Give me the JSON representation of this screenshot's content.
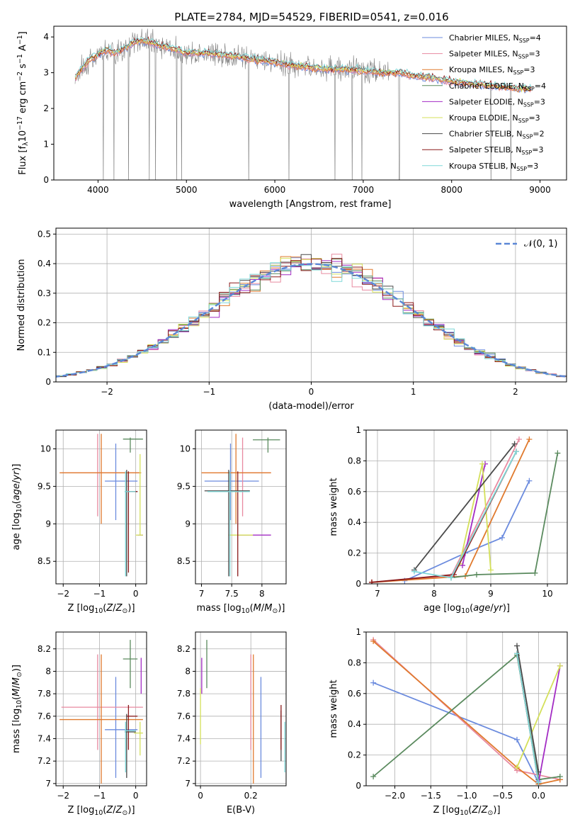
{
  "figure_title": "PLATE=2784, MJD=54529, FIBERID=0541, z=0.016",
  "models": [
    {
      "name": "Chabrier MILES, N<sub>SSP</sub>=4",
      "color": "#6b8bde"
    },
    {
      "name": "Salpeter MILES, N<sub>SSP</sub>=3",
      "color": "#e88aa0"
    },
    {
      "name": "Kroupa MILES, N<sub>SSP</sub>=3",
      "color": "#e07a2e"
    },
    {
      "name": "Chabrier ELODIE, N<sub>SSP</sub>=4",
      "color": "#5a8a5e"
    },
    {
      "name": "Salpeter ELODIE, N<sub>SSP</sub>=3",
      "color": "#a32cc4"
    },
    {
      "name": "Kroupa ELODIE, N<sub>SSP</sub>=3",
      "color": "#d4e05a"
    },
    {
      "name": "Chabrier STELIB, N<sub>SSP</sub>=2",
      "color": "#4a4a4a"
    },
    {
      "name": "Salpeter STELIB, N<sub>SSP</sub>=3",
      "color": "#8b1a1a"
    },
    {
      "name": "Kroupa STELIB, N<sub>SSP</sub>=3",
      "color": "#7fd8d8"
    }
  ],
  "chart_data": [
    {
      "id": "spectrum",
      "type": "line",
      "title": "PLATE=2784, MJD=54529, FIBERID=0541, z=0.016",
      "xlabel": "wavelength [Angstrom, rest frame]",
      "ylabel": "Flux [f<sub>λ</sub>10<sup>−17</sup> erg cm<sup>−2</sup> s<sup>−1</sup> A<sup>−1</sup>]",
      "xlim": [
        3500,
        9300
      ],
      "ylim": [
        0,
        4.3
      ],
      "xticks": [
        4000,
        5000,
        6000,
        7000,
        8000,
        9000
      ],
      "yticks": [
        0,
        1,
        2,
        3,
        4
      ],
      "grid": false,
      "legend": "upper-right",
      "data_color": "#808080",
      "continuum": {
        "x": [
          3740,
          3800,
          3900,
          4000,
          4100,
          4200,
          4300,
          4400,
          4500,
          4600,
          4700,
          4800,
          4900,
          5000,
          5200,
          5400,
          5600,
          5800,
          6000,
          6200,
          6400,
          6600,
          6800,
          7000,
          7200,
          7400,
          7600,
          7800,
          8000,
          8200,
          8400,
          8600,
          8800
        ],
        "y": [
          2.85,
          3.05,
          3.35,
          3.5,
          3.65,
          3.55,
          3.7,
          3.85,
          3.9,
          3.85,
          3.75,
          3.7,
          3.65,
          3.55,
          3.55,
          3.5,
          3.45,
          3.35,
          3.3,
          3.2,
          3.15,
          3.1,
          3.1,
          3.05,
          3.0,
          3.0,
          2.9,
          2.85,
          2.75,
          2.7,
          2.65,
          2.6,
          2.55
        ]
      }
    },
    {
      "id": "residuals",
      "type": "histogram",
      "xlabel": "(data-model)/error",
      "ylabel": "Normed distribution",
      "xlim": [
        -2.5,
        2.5
      ],
      "ylim": [
        0,
        0.52
      ],
      "xticks": [
        -2,
        -1,
        0,
        1,
        2
      ],
      "yticks": [
        0.0,
        0.1,
        0.2,
        0.3,
        0.4,
        0.5
      ],
      "grid": true,
      "legend": "upper-right",
      "reference_curve": {
        "name": "𝒩(0, 1)",
        "mean": 0,
        "sigma": 1,
        "color": "#5b87d6"
      },
      "bin_width": 0.1
    },
    {
      "id": "age-vs-Z",
      "type": "errorbar",
      "xlabel": "Z [log<sub>10</sub>(<i>Z</i>/<i>Z</i><sub>⊙</sub>)]",
      "ylabel": "age  [log<sub>10</sub>(<i>age</i>/<i>yr</i>)]",
      "xlim": [
        -2.2,
        0.3
      ],
      "ylim": [
        8.2,
        10.25
      ],
      "xticks": [
        -2,
        -1,
        0
      ],
      "yticks": [
        8.5,
        9.0,
        9.5,
        10.0
      ],
      "grid": true,
      "points": [
        {
          "m": 0,
          "x": -0.55,
          "y": 9.57,
          "xe": [
            -0.85,
            0.05
          ],
          "ye": [
            9.05,
            10.07
          ]
        },
        {
          "m": 1,
          "x": -1.05,
          "y": 9.68,
          "xe": [
            -2.05,
            0.1
          ],
          "ye": [
            9.1,
            10.2
          ]
        },
        {
          "m": 2,
          "x": -0.95,
          "y": 9.68,
          "xe": [
            -2.1,
            0.15
          ],
          "ye": [
            9.0,
            10.2
          ]
        },
        {
          "m": 3,
          "x": -0.15,
          "y": 10.13,
          "xe": [
            -0.35,
            0.2
          ],
          "ye": [
            9.95,
            10.15
          ]
        },
        {
          "m": 4,
          "x": 0.2,
          "y": 8.85,
          "xe": [
            0.05,
            0.2
          ],
          "ye": [
            8.85,
            8.85
          ]
        },
        {
          "m": 5,
          "x": 0.12,
          "y": 8.85,
          "xe": [
            0.0,
            0.2
          ],
          "ye": [
            8.85,
            9.93
          ]
        },
        {
          "m": 6,
          "x": -0.25,
          "y": 9.43,
          "xe": [
            -0.3,
            0.05
          ],
          "ye": [
            8.3,
            9.72
          ]
        },
        {
          "m": 7,
          "x": -0.2,
          "y": 9.43,
          "xe": [
            -0.25,
            0.05
          ],
          "ye": [
            8.35,
            9.7
          ]
        },
        {
          "m": 8,
          "x": -0.28,
          "y": 9.43,
          "xe": [
            -0.3,
            0.0
          ],
          "ye": [
            8.3,
            9.7
          ]
        }
      ]
    },
    {
      "id": "age-vs-mass",
      "type": "errorbar",
      "xlabel": "mass [log<sub>10</sub>(<i>M</i>/<i>M</i><sub>⊙</sub>)]",
      "ylabel": "",
      "xlim": [
        6.9,
        8.4
      ],
      "ylim": [
        8.2,
        10.25
      ],
      "xticks": [
        7.0,
        7.5,
        8.0
      ],
      "yticks": [
        8.5,
        9.0,
        9.5,
        10.0
      ],
      "grid": true,
      "points": [
        {
          "m": 0,
          "x": 7.48,
          "y": 9.57,
          "xe": [
            7.05,
            7.95
          ],
          "ye": [
            9.05,
            10.07
          ]
        },
        {
          "m": 1,
          "x": 7.68,
          "y": 9.68,
          "xe": [
            7.3,
            8.15
          ],
          "ye": [
            9.1,
            10.15
          ]
        },
        {
          "m": 2,
          "x": 7.57,
          "y": 9.68,
          "xe": [
            7.0,
            8.15
          ],
          "ye": [
            9.0,
            10.2
          ]
        },
        {
          "m": 3,
          "x": 8.1,
          "y": 10.12,
          "xe": [
            7.85,
            8.3
          ],
          "ye": [
            9.95,
            10.15
          ]
        },
        {
          "m": 4,
          "x": 7.85,
          "y": 8.85,
          "xe": [
            7.6,
            8.15
          ],
          "ye": [
            8.85,
            8.85
          ]
        },
        {
          "m": 5,
          "x": 7.65,
          "y": 8.85,
          "xe": [
            7.45,
            7.85
          ],
          "ye": [
            8.85,
            8.85
          ]
        },
        {
          "m": 6,
          "x": 7.45,
          "y": 9.44,
          "xe": [
            7.05,
            7.8
          ],
          "ye": [
            8.3,
            9.72
          ]
        },
        {
          "m": 7,
          "x": 7.6,
          "y": 9.43,
          "xe": [
            7.3,
            7.75
          ],
          "ye": [
            8.3,
            9.7
          ]
        },
        {
          "m": 8,
          "x": 7.47,
          "y": 9.43,
          "xe": [
            7.1,
            7.8
          ],
          "ye": [
            8.3,
            9.7
          ]
        }
      ]
    },
    {
      "id": "weight-vs-age",
      "type": "line",
      "xlabel": "age  [log<sub>10</sub>(<i>age</i>/<i>yr</i>)]",
      "ylabel": "mass weight",
      "xlim": [
        6.8,
        10.35
      ],
      "ylim": [
        0,
        1.0
      ],
      "xticks": [
        7,
        8,
        9,
        10
      ],
      "yticks": [
        0.0,
        0.2,
        0.4,
        0.6,
        0.8,
        1.0
      ],
      "grid": true,
      "series": [
        {
          "m": 0,
          "x": [
            7.48,
            8.55,
            9.2,
            9.68
          ],
          "y": [
            0.02,
            0.2,
            0.3,
            0.67
          ]
        },
        {
          "m": 1,
          "x": [
            6.9,
            8.3,
            9.5
          ],
          "y": [
            0.01,
            0.05,
            0.94
          ]
        },
        {
          "m": 2,
          "x": [
            6.9,
            8.55,
            9.68
          ],
          "y": [
            0.01,
            0.05,
            0.94
          ]
        },
        {
          "m": 3,
          "x": [
            8.3,
            8.75,
            9.78,
            10.18
          ],
          "y": [
            0.04,
            0.06,
            0.07,
            0.85
          ]
        },
        {
          "m": 4,
          "x": [
            8.5,
            8.9
          ],
          "y": [
            0.12,
            0.78
          ]
        },
        {
          "m": 5,
          "x": [
            8.45,
            8.85,
            9.0
          ],
          "y": [
            0.13,
            0.78,
            0.09
          ]
        },
        {
          "m": 6,
          "x": [
            7.65,
            9.42
          ],
          "y": [
            0.09,
            0.91
          ]
        },
        {
          "m": 7,
          "x": [
            6.9,
            8.35,
            9.45
          ],
          "y": [
            0.01,
            0.06,
            0.86
          ]
        },
        {
          "m": 8,
          "x": [
            7.65,
            8.3,
            9.45
          ],
          "y": [
            0.08,
            0.04,
            0.86
          ]
        }
      ]
    },
    {
      "id": "mass-vs-Z",
      "type": "errorbar",
      "xlabel": "Z [log<sub>10</sub>(<i>Z</i>/<i>Z</i><sub>⊙</sub>)]",
      "ylabel": "mass [log<sub>10</sub>(<i>M</i>/<i>M</i><sub>⊙</sub>)]",
      "xlim": [
        -2.2,
        0.3
      ],
      "ylim": [
        6.98,
        8.35
      ],
      "xticks": [
        -2,
        -1,
        0
      ],
      "yticks": [
        7.0,
        7.2,
        7.4,
        7.6,
        7.8,
        8.0,
        8.2
      ],
      "grid": true,
      "points": [
        {
          "m": 0,
          "x": -0.55,
          "y": 7.48,
          "xe": [
            -0.85,
            0.05
          ],
          "ye": [
            7.05,
            7.95
          ]
        },
        {
          "m": 1,
          "x": -1.05,
          "y": 7.68,
          "xe": [
            -2.05,
            0.2
          ],
          "ye": [
            7.3,
            8.15
          ]
        },
        {
          "m": 2,
          "x": -0.95,
          "y": 7.57,
          "xe": [
            -2.1,
            0.2
          ],
          "ye": [
            7.0,
            8.15
          ]
        },
        {
          "m": 3,
          "x": -0.15,
          "y": 8.11,
          "xe": [
            -0.35,
            0.05
          ],
          "ye": [
            7.85,
            8.28
          ]
        },
        {
          "m": 4,
          "x": 0.15,
          "y": 7.95,
          "xe": [
            0.15,
            0.15
          ],
          "ye": [
            7.8,
            8.12
          ]
        },
        {
          "m": 5,
          "x": 0.12,
          "y": 7.45,
          "xe": [
            -0.05,
            0.2
          ],
          "ye": [
            7.25,
            7.55
          ]
        },
        {
          "m": 6,
          "x": -0.25,
          "y": 7.46,
          "xe": [
            -0.3,
            0.0
          ],
          "ye": [
            7.05,
            7.62
          ]
        },
        {
          "m": 7,
          "x": -0.2,
          "y": 7.6,
          "xe": [
            -0.25,
            0.05
          ],
          "ye": [
            7.3,
            7.7
          ]
        },
        {
          "m": 8,
          "x": -0.28,
          "y": 7.47,
          "xe": [
            -0.3,
            0.0
          ],
          "ye": [
            7.1,
            7.55
          ]
        }
      ]
    },
    {
      "id": "mass-vs-EBV",
      "type": "errorbar",
      "xlabel": "E(B-V)",
      "ylabel": "",
      "xlim": [
        -0.02,
        0.34
      ],
      "ylim": [
        6.98,
        8.35
      ],
      "xticks": [
        0.0,
        0.2
      ],
      "yticks": [
        7.0,
        7.2,
        7.4,
        7.6,
        7.8,
        8.0,
        8.2
      ],
      "grid": true,
      "points": [
        {
          "m": 0,
          "x": 0.24,
          "y": 7.48,
          "xe": [
            0.24,
            0.24
          ],
          "ye": [
            7.05,
            7.95
          ]
        },
        {
          "m": 1,
          "x": 0.2,
          "y": 7.68,
          "xe": [
            0.2,
            0.2
          ],
          "ye": [
            7.3,
            8.15
          ]
        },
        {
          "m": 2,
          "x": 0.21,
          "y": 7.57,
          "xe": [
            0.21,
            0.21
          ],
          "ye": [
            7.0,
            8.15
          ]
        },
        {
          "m": 3,
          "x": 0.025,
          "y": 8.1,
          "xe": [
            0.025,
            0.025
          ],
          "ye": [
            7.85,
            8.28
          ]
        },
        {
          "m": 4,
          "x": 0.005,
          "y": 7.95,
          "xe": [
            0.005,
            0.005
          ],
          "ye": [
            7.8,
            8.12
          ]
        },
        {
          "m": 5,
          "x": 0.0,
          "y": 7.6,
          "xe": [
            0.0,
            0.0
          ],
          "ye": [
            7.35,
            7.85
          ]
        },
        {
          "m": 6,
          "x": 0.32,
          "y": 7.46,
          "xe": [
            0.32,
            0.32
          ],
          "ye": [
            7.2,
            7.65
          ]
        },
        {
          "m": 7,
          "x": 0.32,
          "y": 7.6,
          "xe": [
            0.32,
            0.32
          ],
          "ye": [
            7.3,
            7.7
          ]
        },
        {
          "m": 8,
          "x": 0.335,
          "y": 7.35,
          "xe": [
            0.335,
            0.335
          ],
          "ye": [
            7.1,
            7.55
          ]
        }
      ]
    },
    {
      "id": "weight-vs-Z",
      "type": "line",
      "xlabel": "Z [log<sub>10</sub>(<i>Z</i>/<i>Z</i><sub>⊙</sub>)]",
      "ylabel": "mass weight",
      "xlim": [
        -2.4,
        0.4
      ],
      "ylim": [
        0,
        1.0
      ],
      "xticks": [
        -2.0,
        -1.5,
        -1.0,
        -0.5,
        0.0
      ],
      "tick_labels": [
        "−2.0",
        "−1.5",
        "−1.0",
        "−0.5",
        "0.0"
      ],
      "yticks": [
        0.0,
        0.2,
        0.4,
        0.6,
        0.8,
        1.0
      ],
      "grid": true,
      "series": [
        {
          "m": 0,
          "x": [
            -2.3,
            -0.3,
            0.0,
            0.0
          ],
          "y": [
            0.67,
            0.3,
            0.02,
            0.03
          ]
        },
        {
          "m": 1,
          "x": [
            -2.3,
            -0.3,
            0.3
          ],
          "y": [
            0.95,
            0.1,
            0.04
          ]
        },
        {
          "m": 2,
          "x": [
            -2.3,
            -0.3,
            0.0,
            0.3
          ],
          "y": [
            0.94,
            0.12,
            0.01,
            0.04
          ]
        },
        {
          "m": 3,
          "x": [
            -2.3,
            -0.3,
            0.0,
            0.3
          ],
          "y": [
            0.06,
            0.85,
            0.04,
            0.06
          ]
        },
        {
          "m": 4,
          "x": [
            0.0,
            0.3
          ],
          "y": [
            0.02,
            0.78
          ]
        },
        {
          "m": 5,
          "x": [
            -0.3,
            0.3
          ],
          "y": [
            0.12,
            0.78
          ]
        },
        {
          "m": 6,
          "x": [
            -0.3,
            0.0
          ],
          "y": [
            0.91,
            0.09
          ]
        },
        {
          "m": 7,
          "x": [
            -0.3,
            0.0
          ],
          "y": [
            0.86,
            0.02
          ]
        },
        {
          "m": 8,
          "x": [
            -0.3,
            0.0
          ],
          "y": [
            0.86,
            0.02
          ]
        }
      ]
    }
  ]
}
